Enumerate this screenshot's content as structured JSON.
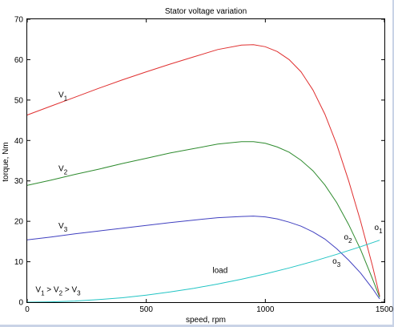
{
  "chart_data": {
    "type": "line",
    "title": "Stator voltage variation",
    "xlabel": "speed, rpm",
    "ylabel": "torque, Nm",
    "xlim": [
      0,
      1500
    ],
    "ylim": [
      0,
      70
    ],
    "x_ticks": [
      0,
      500,
      1000,
      1500
    ],
    "y_ticks": [
      0,
      10,
      20,
      30,
      40,
      50,
      60,
      70
    ],
    "grid": false,
    "series": [
      {
        "name": "V1",
        "label_base": "V",
        "label_sub": "1",
        "color": "#e03030",
        "x": [
          0,
          100,
          200,
          300,
          400,
          500,
          600,
          700,
          800,
          900,
          950,
          1000,
          1050,
          1100,
          1150,
          1200,
          1250,
          1300,
          1350,
          1400,
          1450,
          1480
        ],
        "y": [
          46.3,
          48.5,
          50.7,
          52.9,
          55.0,
          57.0,
          58.9,
          60.7,
          62.5,
          63.6,
          63.7,
          63.2,
          62.0,
          60.0,
          57.0,
          52.5,
          46.5,
          39.0,
          30.0,
          20.0,
          9.0,
          1.5
        ]
      },
      {
        "name": "V2",
        "label_base": "V",
        "label_sub": "2",
        "color": "#2e8b2e",
        "x": [
          0,
          100,
          200,
          300,
          400,
          500,
          600,
          700,
          800,
          900,
          950,
          1000,
          1050,
          1100,
          1150,
          1200,
          1250,
          1300,
          1350,
          1400,
          1450,
          1480
        ],
        "y": [
          28.9,
          30.2,
          31.6,
          32.9,
          34.3,
          35.6,
          36.9,
          38.0,
          39.1,
          39.7,
          39.7,
          39.3,
          38.4,
          37.1,
          35.1,
          32.5,
          29.0,
          24.6,
          19.2,
          13.0,
          5.8,
          1.2
        ]
      },
      {
        "name": "V3",
        "label_base": "V",
        "label_sub": "3",
        "color": "#4040c0",
        "x": [
          0,
          100,
          200,
          300,
          400,
          500,
          600,
          700,
          800,
          900,
          950,
          1000,
          1050,
          1100,
          1150,
          1200,
          1250,
          1300,
          1350,
          1400,
          1450,
          1480
        ],
        "y": [
          15.4,
          16.1,
          16.9,
          17.6,
          18.3,
          19.0,
          19.7,
          20.3,
          20.9,
          21.2,
          21.3,
          21.1,
          20.6,
          19.8,
          18.8,
          17.4,
          15.6,
          13.2,
          10.4,
          7.2,
          3.4,
          0.8
        ]
      },
      {
        "name": "load",
        "label": "load",
        "color": "#22c4c4",
        "x": [
          0,
          100,
          200,
          300,
          400,
          500,
          600,
          700,
          800,
          900,
          1000,
          1100,
          1200,
          1300,
          1400,
          1480
        ],
        "y": [
          0,
          0.07,
          0.28,
          0.63,
          1.1,
          1.75,
          2.52,
          3.43,
          4.48,
          5.67,
          7.0,
          8.47,
          10.08,
          11.83,
          13.72,
          15.33
        ]
      }
    ],
    "annotations": [
      {
        "base": "o",
        "sub": "1",
        "x": 1458,
        "y": 17.8
      },
      {
        "base": "o",
        "sub": "2",
        "x": 1330,
        "y": 15.5
      },
      {
        "base": "o",
        "sub": "3",
        "x": 1282,
        "y": 9.5
      },
      {
        "parts": [
          "V",
          "1",
          " > V",
          "2",
          " > V",
          "3"
        ],
        "x": 35,
        "y": 2.5
      }
    ]
  }
}
